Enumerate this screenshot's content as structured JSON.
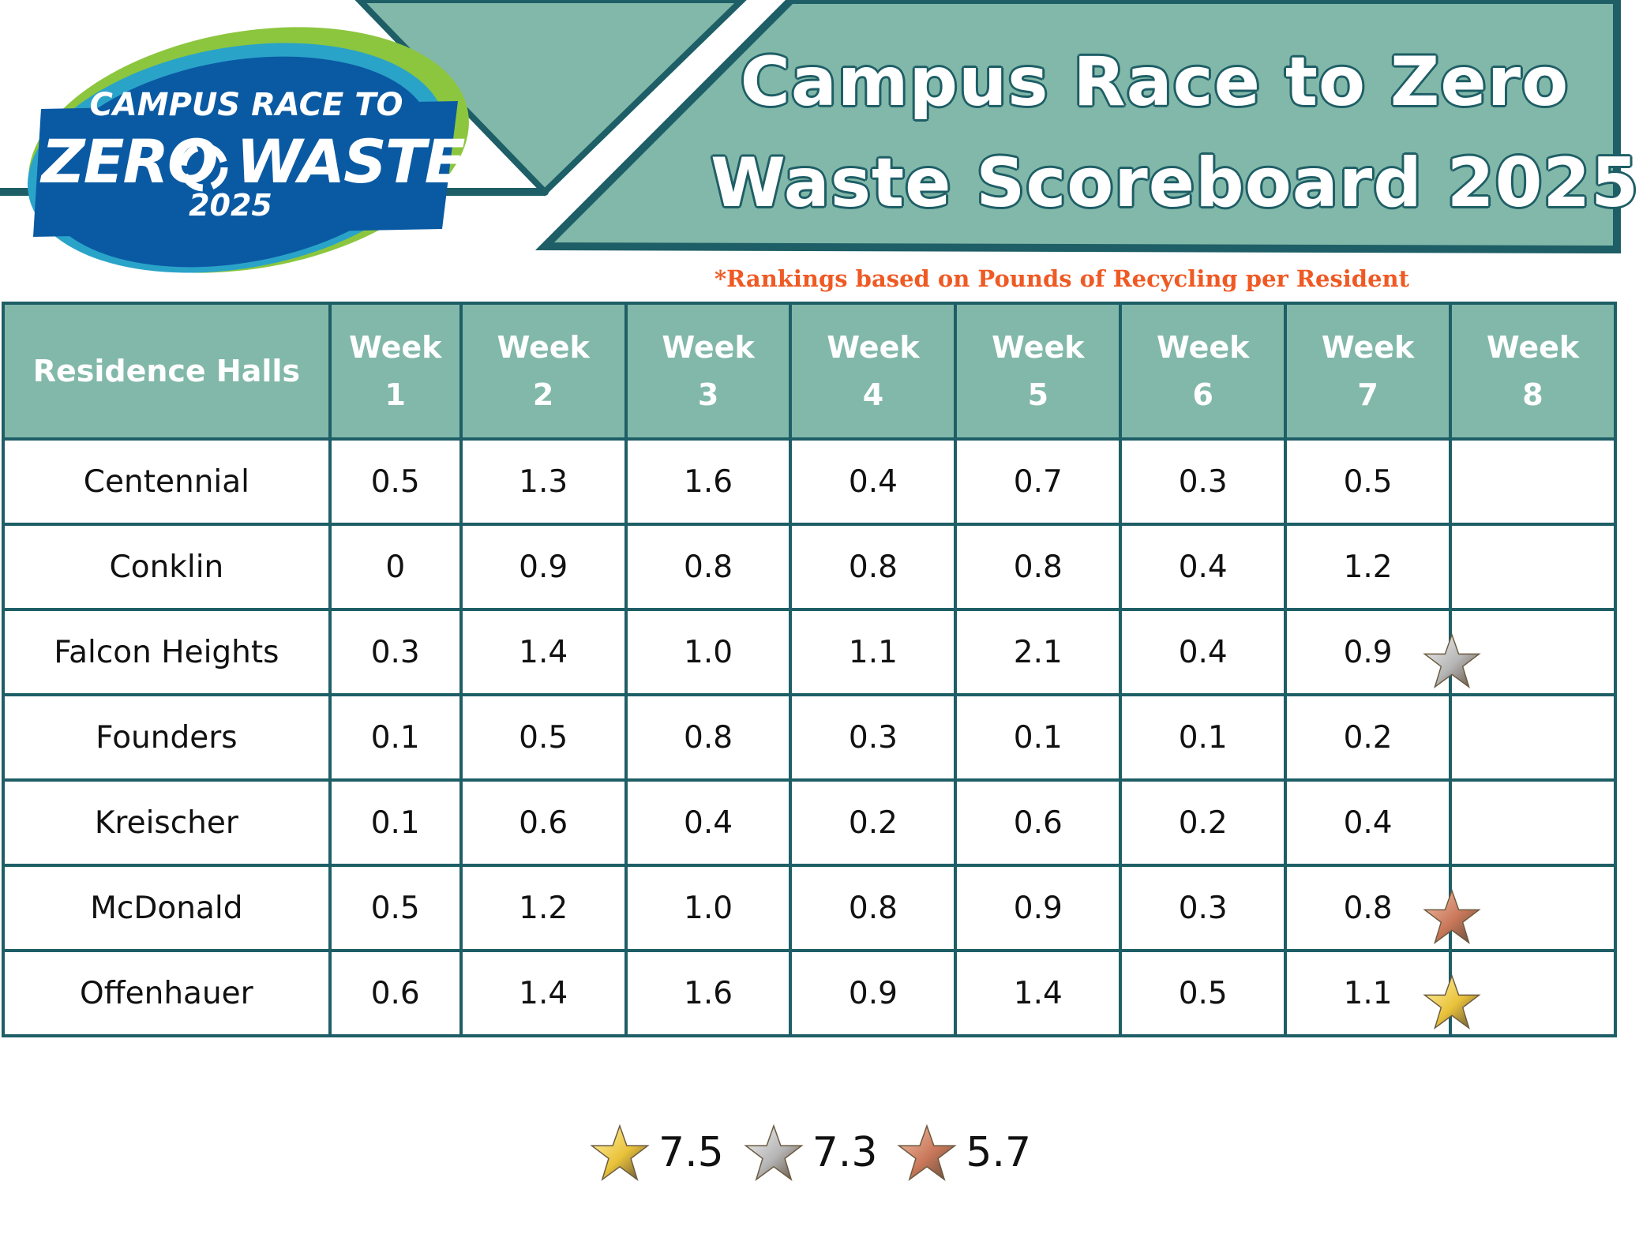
{
  "header": {
    "title_lines": [
      "Campus Race to Zero",
      "Waste Scoreboard 2025"
    ],
    "subtitle": "*Rankings based on Pounds of Recycling per Resident"
  },
  "logo": {
    "line1": "CAMPUS RACE TO",
    "line2": "ZERO WASTE",
    "line3": "2025",
    "icon": "recycle-icon"
  },
  "colors": {
    "teal_fill": "#82b8a9",
    "dark_teal": "#1e5e66",
    "accent_orange": "#ef5a24",
    "logo_blue": "#0a5aa3",
    "logo_green": "#8cc63f",
    "gold": "#e9c23a",
    "silver": "#b5b5b5",
    "bronze": "#c9775a"
  },
  "table": {
    "columns": [
      "Residence Halls",
      "Week\n1",
      "Week\n2",
      "Week\n3",
      "Week\n4",
      "Week\n5",
      "Week\n6",
      "Week\n7",
      "Week\n8"
    ],
    "rows": [
      {
        "hall": "Centennial",
        "values": [
          "0.5",
          "1.3",
          "1.6",
          "0.4",
          "0.7",
          "0.3",
          "0.5",
          ""
        ],
        "award": null
      },
      {
        "hall": "Conklin",
        "values": [
          "0",
          "0.9",
          "0.8",
          "0.8",
          "0.8",
          "0.4",
          "1.2",
          ""
        ],
        "award": null
      },
      {
        "hall": "Falcon Heights",
        "values": [
          "0.3",
          "1.4",
          "1.0",
          "1.1",
          "2.1",
          "0.4",
          "0.9",
          ""
        ],
        "award": "silver"
      },
      {
        "hall": "Founders",
        "values": [
          "0.1",
          "0.5",
          "0.8",
          "0.3",
          "0.1",
          "0.1",
          "0.2",
          ""
        ],
        "award": null
      },
      {
        "hall": "Kreischer",
        "values": [
          "0.1",
          "0.6",
          "0.4",
          "0.2",
          "0.6",
          "0.2",
          "0.4",
          ""
        ],
        "award": null
      },
      {
        "hall": "McDonald",
        "values": [
          "0.5",
          "1.2",
          "1.0",
          "0.8",
          "0.9",
          "0.3",
          "0.8",
          ""
        ],
        "award": "bronze"
      },
      {
        "hall": "Offenhauer",
        "values": [
          "0.6",
          "1.4",
          "1.6",
          "0.9",
          "1.4",
          "0.5",
          "1.1",
          ""
        ],
        "award": "gold"
      }
    ]
  },
  "legend": [
    {
      "medal": "gold",
      "value": "7.5"
    },
    {
      "medal": "silver",
      "value": "7.3"
    },
    {
      "medal": "bronze",
      "value": "5.7"
    }
  ]
}
